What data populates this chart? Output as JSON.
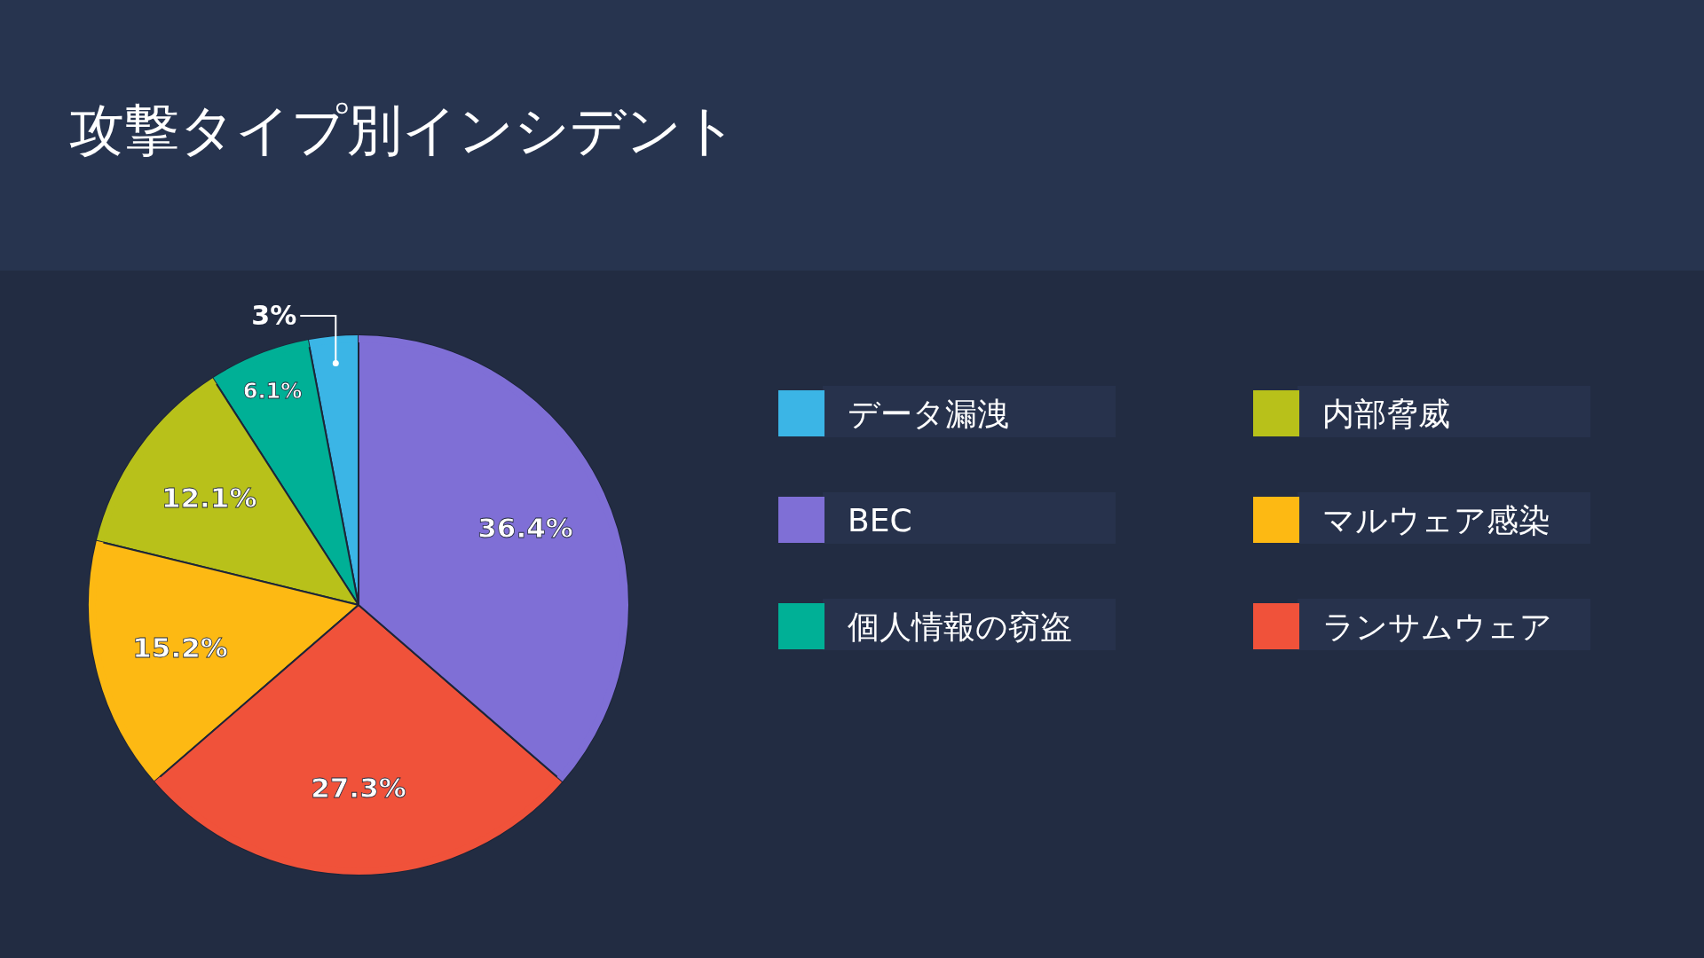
{
  "chart_data": {
    "type": "pie",
    "title": "攻撃タイプ別インシデント",
    "categories": [
      "データ漏洩",
      "個人情報の窃盗",
      "内部脅威",
      "マルウェア感染",
      "ランサムウェア",
      "BEC"
    ],
    "values": [
      3,
      6.1,
      12.1,
      15.2,
      27.3,
      36.4
    ],
    "colors": [
      "#3bb5e6",
      "#00b096",
      "#b8c11a",
      "#fdb913",
      "#f0523a",
      "#7f6fd6"
    ],
    "value_labels": [
      "3%",
      "6.1%",
      "12.1%",
      "15.2%",
      "27.3%",
      "36.4%"
    ],
    "legend": "right"
  }
}
